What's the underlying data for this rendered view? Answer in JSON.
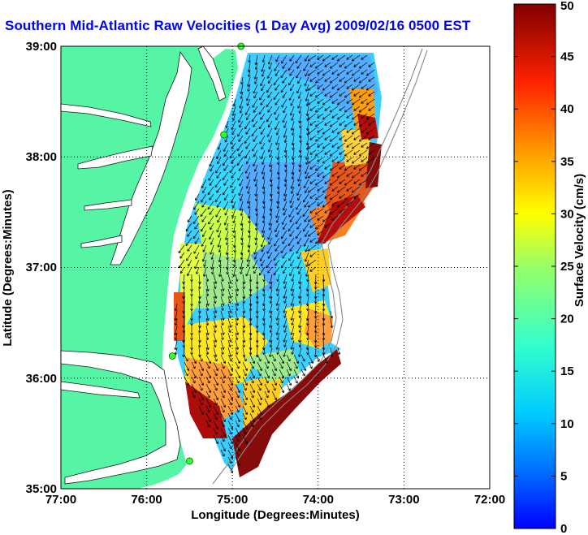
{
  "title": "Southern Mid-Atlantic Raw Velocities (1 Day Avg) 2009/02/16 0500 EST",
  "map": {
    "xlabel": "Longitude (Degrees:Minutes)",
    "ylabel": "Latitude (Degrees:Minutes)",
    "x_ticks": [
      "77:00",
      "76:00",
      "75:00",
      "74:00",
      "73:00",
      "72:00"
    ],
    "y_ticks": [
      "39:00",
      "38:00",
      "37:00",
      "36:00",
      "35:00"
    ],
    "lon_range": [
      -77,
      -72
    ],
    "lat_range": [
      35,
      39
    ],
    "grid": "dotted",
    "land_color": "#55f5a5",
    "water_color": "#ffffff"
  },
  "colorbar": {
    "label": "Surface Velocity (cm/s)",
    "range": [
      0,
      50
    ],
    "ticks": [
      "0",
      "5",
      "10",
      "15",
      "20",
      "25",
      "30",
      "35",
      "40",
      "45",
      "50"
    ],
    "colormap": "jet"
  },
  "stations": [
    {
      "lat": 39.0,
      "lon": -74.9
    },
    {
      "lat": 38.2,
      "lon": -75.1
    },
    {
      "lat": 36.2,
      "lon": -75.7
    },
    {
      "lat": 35.25,
      "lon": -75.5
    }
  ]
}
